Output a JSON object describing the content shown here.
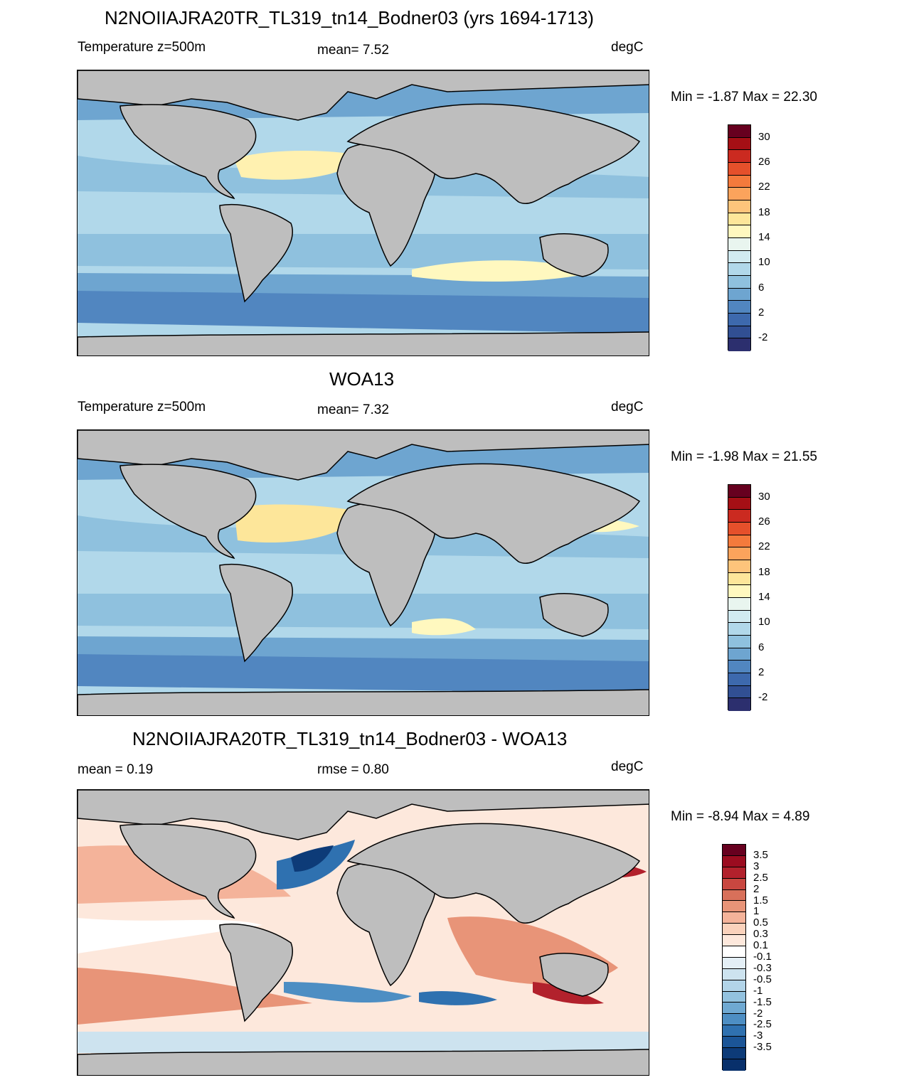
{
  "panels": [
    {
      "title": "N2NOIIAJRA20TR_TL319_tn14_Bodner03 (yrs 1694-1713)",
      "left_label": "Temperature z=500m",
      "center_label": "mean=   7.52",
      "units": "degC",
      "minmax": "Min =  -1.87 Max =  22.30",
      "colorbar": {
        "colors": [
          "#67001f",
          "#a50f15",
          "#cb2a20",
          "#e5502b",
          "#f47a3c",
          "#fba35c",
          "#fdc47b",
          "#fde69a",
          "#fff8bf",
          "#e9f5ef",
          "#d1ebf1",
          "#b1d8ea",
          "#8fc1de",
          "#6ea5d0",
          "#5186c0",
          "#3d69ad",
          "#314f93",
          "#2c2f6e"
        ],
        "labels": [
          "30",
          "26",
          "22",
          "18",
          "14",
          "10",
          "6",
          "2",
          "-2"
        ]
      }
    },
    {
      "title": "WOA13",
      "left_label": "Temperature z=500m",
      "center_label": "mean=   7.32",
      "units": "degC",
      "minmax": "Min =  -1.98 Max =  21.55",
      "colorbar": {
        "colors": [
          "#67001f",
          "#a50f15",
          "#cb2a20",
          "#e5502b",
          "#f47a3c",
          "#fba35c",
          "#fdc47b",
          "#fde69a",
          "#fff8bf",
          "#e9f5ef",
          "#d1ebf1",
          "#b1d8ea",
          "#8fc1de",
          "#6ea5d0",
          "#5186c0",
          "#3d69ad",
          "#314f93",
          "#2c2f6e"
        ],
        "labels": [
          "30",
          "26",
          "22",
          "18",
          "14",
          "10",
          "6",
          "2",
          "-2"
        ]
      }
    },
    {
      "title": "N2NOIIAJRA20TR_TL319_tn14_Bodner03 - WOA13",
      "left_label": "mean =   0.19",
      "center_label": "rmse =   0.80",
      "units": "degC",
      "minmax": "Min =  -8.94 Max =   4.89",
      "colorbar": {
        "colors": [
          "#67001f",
          "#9b0c20",
          "#b2212c",
          "#c94740",
          "#d8705a",
          "#e89478",
          "#f4b39a",
          "#fad2bc",
          "#fde8dc",
          "#ffffff",
          "#e4eff6",
          "#cde3ef",
          "#b2d4e8",
          "#93c2df",
          "#6fa9d2",
          "#4d8ec3",
          "#2f71b0",
          "#1b5597",
          "#0d3b78",
          "#08306b"
        ],
        "labels": [
          "3.5",
          "3",
          "2.5",
          "2",
          "1.5",
          "1",
          "0.5",
          "0.3",
          "0.1",
          "-0.1",
          "-0.3",
          "-0.5",
          "-1",
          "-1.5",
          "-2",
          "-2.5",
          "-3",
          "-3.5"
        ]
      }
    }
  ]
}
